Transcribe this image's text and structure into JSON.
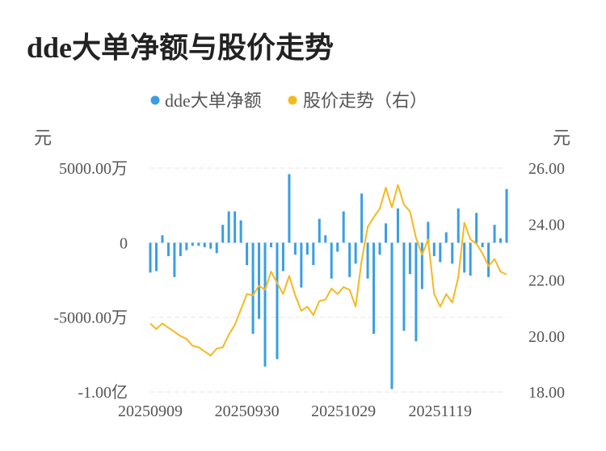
{
  "title": "dde大单净额与股价走势",
  "colors": {
    "bar": "#3a9ee4",
    "line": "#f5b920",
    "grid": "#e6e6e6",
    "text": "#555555"
  },
  "chart_data": {
    "type": "bar+line",
    "legend": {
      "position": "top",
      "items": [
        "dde大单净额",
        "股价走势（右）"
      ]
    },
    "left_axis": {
      "unit_label": "元",
      "min": -10000,
      "max": 5000,
      "ticks": [
        5000,
        0,
        -5000,
        -10000
      ],
      "tick_labels": [
        "5000.00万",
        "0",
        "-5000.00万",
        "-1.00亿"
      ]
    },
    "right_axis": {
      "unit_label": "元",
      "min": 18,
      "max": 26,
      "ticks": [
        26,
        24,
        22,
        20,
        18
      ],
      "tick_labels": [
        "26.00",
        "24.00",
        "22.00",
        "20.00",
        "18.00"
      ]
    },
    "x_tick_labels": [
      "20250909",
      "20250930",
      "20251029",
      "20251119"
    ],
    "x_tick_index": [
      0,
      16,
      32,
      48
    ],
    "series": [
      {
        "name": "dde大单净额",
        "type": "bar",
        "axis": "left",
        "values": [
          -2000,
          -1900,
          500,
          -900,
          -2300,
          -900,
          -500,
          -200,
          -200,
          -300,
          -400,
          -700,
          1200,
          2100,
          2100,
          1500,
          -1500,
          -6100,
          -5100,
          -8300,
          -300,
          -7800,
          -1900,
          4600,
          -800,
          -3000,
          -800,
          -1500,
          1600,
          500,
          -2400,
          -600,
          2100,
          -2300,
          -1400,
          3300,
          -2400,
          -6100,
          -800,
          1300,
          -9800,
          2300,
          -5900,
          -2100,
          -6600,
          -3100,
          1400,
          -900,
          -1300,
          700,
          -1400,
          2300,
          -2000,
          -2200,
          2000,
          -300,
          -2300,
          1200,
          300,
          3600
        ]
      },
      {
        "name": "股价走势（右）",
        "type": "line",
        "axis": "right",
        "values": [
          20.45,
          20.25,
          20.45,
          20.3,
          20.15,
          20.0,
          19.9,
          19.65,
          19.6,
          19.45,
          19.3,
          19.55,
          19.6,
          20.05,
          20.4,
          20.95,
          21.5,
          21.45,
          21.8,
          21.65,
          22.3,
          21.9,
          21.5,
          22.15,
          21.45,
          20.9,
          21.05,
          20.75,
          21.25,
          21.3,
          21.7,
          21.5,
          21.75,
          21.65,
          21.05,
          22.7,
          23.9,
          24.25,
          24.55,
          25.3,
          24.6,
          25.4,
          24.7,
          24.45,
          23.5,
          22.9,
          23.45,
          21.5,
          21.05,
          21.5,
          21.2,
          22.1,
          24.05,
          23.45,
          23.3,
          22.95,
          22.5,
          22.75,
          22.3,
          22.2
        ]
      }
    ]
  }
}
